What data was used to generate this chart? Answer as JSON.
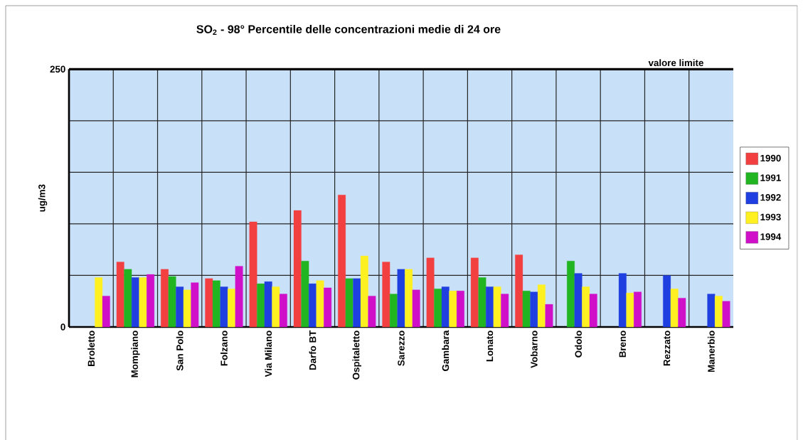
{
  "chart_data": {
    "type": "bar",
    "title": "SO$_{2}$ - 98° Percentile delle concentrazioni medie di 24 ore",
    "ylabel": "ug/m3",
    "categories": [
      "Broletto",
      "Mompiano",
      "San Polo",
      "Folzano",
      "Via Milano",
      "Darfo BT",
      "Ospitaletto",
      "Sarezzo",
      "Gambara",
      "Lonato",
      "Vobarno",
      "Odolo",
      "Breno",
      "Rezzato",
      "Manerbio"
    ],
    "series": [
      {
        "name": "1990",
        "color": "#f24040",
        "values": [
          null,
          63,
          56,
          47,
          102,
          113,
          128,
          63,
          67,
          67,
          70,
          null,
          null,
          null,
          null
        ]
      },
      {
        "name": "1991",
        "color": "#22b522",
        "values": [
          null,
          56,
          49,
          45,
          42,
          64,
          47,
          32,
          37,
          48,
          35,
          64,
          null,
          null,
          null
        ]
      },
      {
        "name": "1992",
        "color": "#1f3fe0",
        "values": [
          null,
          48,
          39,
          39,
          44,
          42,
          47,
          56,
          39,
          39,
          34,
          52,
          52,
          50,
          32
        ]
      },
      {
        "name": "1993",
        "color": "#fff022",
        "values": [
          48,
          48,
          36,
          37,
          39,
          45,
          69,
          56,
          35,
          39,
          41,
          39,
          33,
          37,
          30
        ]
      },
      {
        "name": "1994",
        "color": "#d010c8",
        "values": [
          30,
          51,
          43,
          59,
          32,
          38,
          30,
          36,
          35,
          32,
          22,
          32,
          34,
          28,
          25
        ]
      }
    ],
    "ylim": [
      0,
      250
    ],
    "yticks": [
      0,
      {
        "value": 50,
        "label": null
      },
      {
        "value": 100,
        "label": null
      },
      {
        "value": 150,
        "label": null
      },
      {
        "value": 200,
        "label": null
      },
      250
    ],
    "ref_lines": [
      {
        "axis": "y",
        "value": 250,
        "label": "valore limite"
      }
    ],
    "grid": true,
    "legend": "right"
  }
}
